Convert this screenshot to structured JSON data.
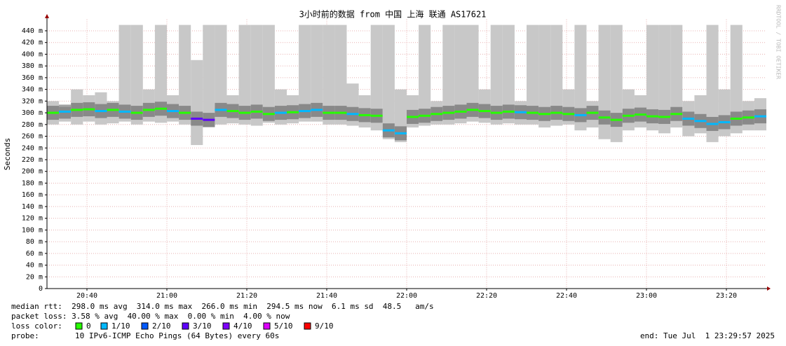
{
  "chart_data": {
    "type": "smokeping",
    "title": "3小时前的数据 from 中国 上海 联通 AS17621",
    "y_label": "Seconds",
    "watermark": "RRDTOOL / TOBI OETIKER",
    "xlim": [
      1230,
      1410
    ],
    "xticks": [
      {
        "value": 1240,
        "label": "20:40"
      },
      {
        "value": 1260,
        "label": "21:00"
      },
      {
        "value": 1280,
        "label": "21:20"
      },
      {
        "value": 1300,
        "label": "21:40"
      },
      {
        "value": 1320,
        "label": "22:00"
      },
      {
        "value": 1340,
        "label": "22:20"
      },
      {
        "value": 1360,
        "label": "22:40"
      },
      {
        "value": 1380,
        "label": "23:00"
      },
      {
        "value": 1400,
        "label": "23:20"
      }
    ],
    "ylim": [
      0,
      450
    ],
    "yticks": [
      0,
      {
        "value": 20,
        "label": "20 m"
      },
      {
        "value": 40,
        "label": "40 m"
      },
      {
        "value": 60,
        "label": "60 m"
      },
      {
        "value": 80,
        "label": "80 m"
      },
      {
        "value": 100,
        "label": "100 m"
      },
      {
        "value": 120,
        "label": "120 m"
      },
      {
        "value": 140,
        "label": "140 m"
      },
      {
        "value": 160,
        "label": "160 m"
      },
      {
        "value": 180,
        "label": "180 m"
      },
      {
        "value": 200,
        "label": "200 m"
      },
      {
        "value": 220,
        "label": "220 m"
      },
      {
        "value": 240,
        "label": "240 m"
      },
      {
        "value": 260,
        "label": "260 m"
      },
      {
        "value": 280,
        "label": "280 m"
      },
      {
        "value": 300,
        "label": "300 m"
      },
      {
        "value": 320,
        "label": "320 m"
      },
      {
        "value": 340,
        "label": "340 m"
      },
      {
        "value": 360,
        "label": "360 m"
      },
      {
        "value": 380,
        "label": "380 m"
      },
      {
        "value": 400,
        "label": "400 m"
      },
      {
        "value": 420,
        "label": "420 m"
      },
      {
        "value": 440,
        "label": "440 m"
      }
    ],
    "grid": true,
    "x": [
      1230,
      1233,
      1236,
      1239,
      1242,
      1245,
      1248,
      1251,
      1254,
      1257,
      1260,
      1263,
      1266,
      1269,
      1272,
      1275,
      1278,
      1281,
      1284,
      1287,
      1290,
      1293,
      1296,
      1299,
      1302,
      1305,
      1308,
      1311,
      1314,
      1317,
      1320,
      1323,
      1326,
      1329,
      1332,
      1335,
      1338,
      1341,
      1344,
      1347,
      1350,
      1353,
      1356,
      1359,
      1362,
      1365,
      1368,
      1371,
      1374,
      1377,
      1380,
      1383,
      1386,
      1389,
      1392,
      1395,
      1398,
      1401,
      1404,
      1407
    ],
    "median": [
      300,
      302,
      305,
      306,
      303,
      305,
      302,
      300,
      305,
      307,
      303,
      300,
      290,
      288,
      305,
      303,
      300,
      302,
      298,
      300,
      301,
      303,
      305,
      300,
      300,
      298,
      296,
      295,
      270,
      265,
      293,
      295,
      298,
      300,
      302,
      305,
      303,
      300,
      302,
      301,
      300,
      298,
      300,
      298,
      296,
      300,
      292,
      288,
      295,
      297,
      294,
      293,
      298,
      290,
      286,
      281,
      284,
      290,
      292,
      294
    ],
    "smoke_high": [
      320,
      310,
      340,
      330,
      335,
      320,
      450,
      450,
      340,
      450,
      330,
      450,
      390,
      450,
      450,
      330,
      450,
      450,
      450,
      340,
      330,
      450,
      450,
      450,
      450,
      350,
      330,
      450,
      450,
      340,
      330,
      450,
      320,
      450,
      450,
      450,
      340,
      450,
      450,
      320,
      450,
      450,
      450,
      340,
      450,
      320,
      450,
      450,
      340,
      330,
      450,
      450,
      450,
      320,
      330,
      450,
      340,
      450,
      320,
      325
    ],
    "smoke_low": [
      280,
      285,
      280,
      285,
      280,
      282,
      285,
      280,
      285,
      283,
      285,
      280,
      245,
      275,
      280,
      282,
      280,
      278,
      283,
      280,
      282,
      285,
      285,
      280,
      280,
      278,
      275,
      270,
      255,
      250,
      275,
      278,
      280,
      280,
      282,
      285,
      283,
      280,
      282,
      280,
      280,
      275,
      278,
      280,
      270,
      275,
      255,
      250,
      270,
      275,
      270,
      265,
      275,
      260,
      265,
      250,
      260,
      265,
      270,
      270
    ],
    "loss": [
      0,
      1,
      0,
      0,
      1,
      0,
      1,
      0,
      0,
      0,
      1,
      0,
      3,
      3,
      1,
      0,
      0,
      0,
      0,
      1,
      0,
      1,
      1,
      0,
      0,
      1,
      0,
      0,
      1,
      1,
      0,
      0,
      0,
      0,
      0,
      0,
      0,
      0,
      0,
      1,
      0,
      0,
      0,
      0,
      1,
      0,
      0,
      0,
      0,
      0,
      0,
      0,
      0,
      1,
      1,
      1,
      1,
      0,
      0,
      1
    ],
    "stats": [
      "median rtt:  298.0 ms avg  314.0 ms max  266.0 ms min  294.5 ms now  6.1 ms sd  48.5   am/s",
      "packet loss: 3.58 % avg  40.00 % max  0.00 % min  4.00 % now"
    ],
    "loss_label": "loss color:",
    "loss_colors": [
      {
        "name": "0",
        "color": "#26ff00"
      },
      {
        "name": "1/10",
        "color": "#00b8ff"
      },
      {
        "name": "2/10",
        "color": "#0059ff"
      },
      {
        "name": "3/10",
        "color": "#5e00ff"
      },
      {
        "name": "4/10",
        "color": "#7e00ff"
      },
      {
        "name": "5/10",
        "color": "#dd00ff"
      },
      {
        "name": "9/10",
        "color": "#ff0000"
      }
    ],
    "probe_label": "probe:",
    "probe": "10 IPv6-ICMP Echo Pings (64 Bytes) every 60s",
    "end": "end: Tue Jul  1 23:29:57 2025"
  }
}
